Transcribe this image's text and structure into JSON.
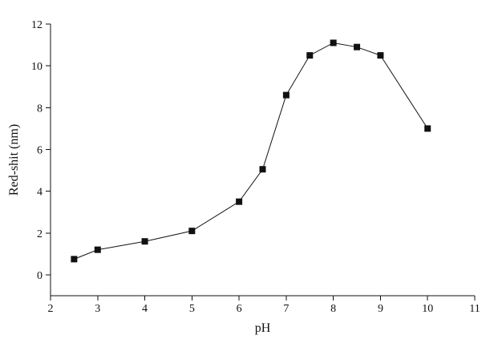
{
  "chart_data": {
    "type": "line",
    "xlabel": "pH",
    "ylabel": "Red-shit (nm)",
    "xlim": [
      2,
      11
    ],
    "ylim": [
      -1,
      12
    ],
    "x_ticks": [
      2,
      3,
      4,
      5,
      6,
      7,
      8,
      9,
      10,
      11
    ],
    "y_ticks": [
      0,
      2,
      4,
      6,
      8,
      10,
      12
    ],
    "grid": false,
    "legend": "none",
    "series": [
      {
        "x": [
          2.5,
          3.0,
          4.0,
          5.0,
          6.0,
          6.5,
          7.0,
          7.5,
          8.0,
          8.5,
          9.0,
          10.0
        ],
        "y": [
          0.75,
          1.2,
          1.6,
          2.1,
          3.5,
          5.05,
          8.6,
          10.5,
          11.1,
          10.9,
          10.5,
          7.0
        ],
        "marker": "square",
        "line_color": "#111111",
        "marker_color": "#111111"
      }
    ]
  }
}
